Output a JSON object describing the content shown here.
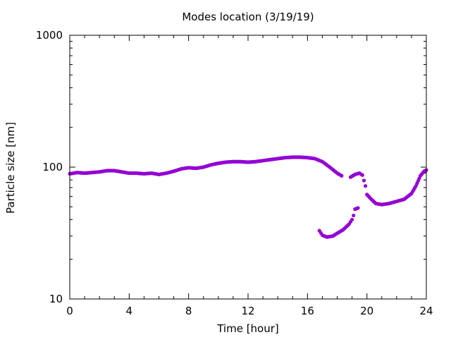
{
  "chart_data": {
    "type": "scatter",
    "title": "Modes location (3/19/19)",
    "xlabel": "Time [hour]",
    "ylabel": "Particle size [nm]",
    "xlim": [
      0,
      24
    ],
    "ylim": [
      10,
      1000
    ],
    "yscale": "log",
    "xticks": [
      0,
      4,
      8,
      12,
      16,
      20,
      24
    ],
    "xtick_labels": [
      "0",
      "4",
      "8",
      "12",
      "16",
      "20",
      "24"
    ],
    "yticks": [
      10,
      100,
      1000
    ],
    "ytick_labels": [
      "10",
      "100",
      "1000"
    ],
    "grid": false,
    "legend": "none",
    "marker_color": "#9400d3",
    "series": [
      {
        "name": "",
        "points": [
          [
            0.0,
            89
          ],
          [
            0.5,
            91
          ],
          [
            1.0,
            90
          ],
          [
            1.5,
            91
          ],
          [
            2.0,
            92
          ],
          [
            2.5,
            94
          ],
          [
            3.0,
            94
          ],
          [
            3.5,
            92
          ],
          [
            4.0,
            90
          ],
          [
            4.5,
            90
          ],
          [
            5.0,
            89
          ],
          [
            5.5,
            90
          ],
          [
            6.0,
            88
          ],
          [
            6.5,
            90
          ],
          [
            7.0,
            93
          ],
          [
            7.5,
            97
          ],
          [
            8.0,
            99
          ],
          [
            8.5,
            98
          ],
          [
            9.0,
            100
          ],
          [
            9.5,
            104
          ],
          [
            10.0,
            107
          ],
          [
            10.5,
            109
          ],
          [
            11.0,
            110
          ],
          [
            11.5,
            110
          ],
          [
            12.0,
            109
          ],
          [
            12.5,
            110
          ],
          [
            13.0,
            112
          ],
          [
            13.5,
            114
          ],
          [
            14.0,
            116
          ],
          [
            14.5,
            118
          ],
          [
            15.0,
            119
          ],
          [
            15.5,
            119
          ],
          [
            16.0,
            118
          ],
          [
            16.5,
            116
          ],
          [
            17.0,
            110
          ],
          [
            17.5,
            100
          ],
          [
            18.0,
            90
          ],
          [
            18.3,
            86
          ]
        ]
      },
      {
        "name": "",
        "points": [
          [
            16.8,
            33
          ],
          [
            17.0,
            30.5
          ],
          [
            17.3,
            29.5
          ],
          [
            17.7,
            30
          ],
          [
            18.0,
            31.5
          ],
          [
            18.4,
            33.5
          ],
          [
            18.8,
            37
          ],
          [
            19.0,
            40
          ],
          [
            19.1,
            43
          ],
          [
            19.2,
            48
          ],
          [
            19.4,
            49
          ]
        ]
      },
      {
        "name": "",
        "points": [
          [
            18.9,
            84
          ],
          [
            19.2,
            88
          ],
          [
            19.5,
            90
          ],
          [
            19.7,
            87
          ],
          [
            19.9,
            72
          ],
          [
            20.0,
            62
          ],
          [
            20.3,
            57
          ],
          [
            20.6,
            53
          ],
          [
            21.0,
            52
          ],
          [
            21.5,
            53
          ],
          [
            22.0,
            55
          ],
          [
            22.5,
            57
          ],
          [
            23.0,
            63
          ],
          [
            23.3,
            72
          ],
          [
            23.6,
            86
          ],
          [
            23.85,
            93
          ],
          [
            24.0,
            95
          ]
        ]
      }
    ]
  }
}
